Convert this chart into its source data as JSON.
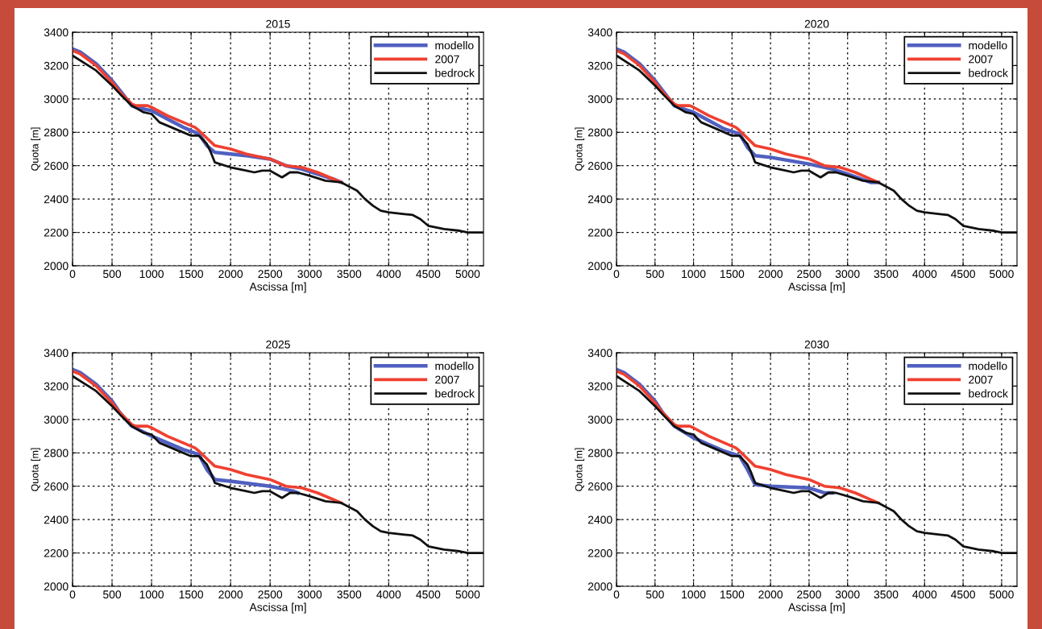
{
  "chart_data": [
    {
      "type": "line",
      "title": "2015",
      "xlabel": "Ascissa [m]",
      "ylabel": "Quota [m]",
      "xlim": [
        0,
        5200
      ],
      "xticks": [
        0,
        500,
        1000,
        1500,
        2000,
        2500,
        3000,
        3500,
        4000,
        4500,
        5000
      ],
      "ylim": [
        2000,
        3400
      ],
      "yticks": [
        2000,
        2200,
        2400,
        2600,
        2800,
        3000,
        3200,
        3400
      ],
      "grid": true,
      "legend": "top right",
      "line_style": "solid",
      "series": [
        {
          "name": "modello",
          "color": "#5060c0",
          "x": [
            0,
            100,
            300,
            500,
            600,
            750,
            800,
            1000,
            1200,
            1400,
            1600,
            1700,
            1800,
            2000,
            2200,
            2500,
            2700,
            2900,
            3100,
            3300,
            3400
          ],
          "values": [
            3300,
            3280,
            3210,
            3110,
            3050,
            2960,
            2950,
            2930,
            2880,
            2830,
            2790,
            2720,
            2680,
            2670,
            2660,
            2640,
            2600,
            2580,
            2550,
            2520,
            2500
          ]
        },
        {
          "name": "2007",
          "color": "#f04030",
          "x": [
            0,
            100,
            300,
            500,
            600,
            750,
            800,
            950,
            1000,
            1200,
            1400,
            1550,
            1600,
            1800,
            2000,
            2200,
            2500,
            2700,
            2900,
            3100,
            3300,
            3400
          ],
          "values": [
            3290,
            3270,
            3200,
            3100,
            3040,
            2970,
            2960,
            2960,
            2950,
            2900,
            2860,
            2830,
            2810,
            2720,
            2700,
            2670,
            2640,
            2600,
            2590,
            2560,
            2520,
            2500
          ]
        },
        {
          "name": "bedrock",
          "color": "#101010",
          "x": [
            0,
            200,
            300,
            500,
            600,
            750,
            900,
            1000,
            1100,
            1300,
            1500,
            1600,
            1700,
            1750,
            1800,
            2000,
            2200,
            2300,
            2400,
            2500,
            2650,
            2750,
            2850,
            3000,
            3200,
            3400,
            3600,
            3700,
            3800,
            3900,
            4000,
            4200,
            4300,
            4400,
            4500,
            4700,
            4900,
            5000,
            5200
          ],
          "values": [
            3260,
            3200,
            3170,
            3080,
            3030,
            2960,
            2920,
            2910,
            2860,
            2820,
            2780,
            2780,
            2730,
            2680,
            2620,
            2590,
            2570,
            2560,
            2570,
            2570,
            2530,
            2560,
            2560,
            2540,
            2510,
            2500,
            2450,
            2400,
            2360,
            2330,
            2320,
            2310,
            2305,
            2280,
            2240,
            2220,
            2210,
            2200,
            2200
          ]
        }
      ]
    },
    {
      "type": "line",
      "title": "2020",
      "xlabel": "Ascissa [m]",
      "ylabel": "Quota [m]",
      "xlim": [
        0,
        5200
      ],
      "xticks": [
        0,
        500,
        1000,
        1500,
        2000,
        2500,
        3000,
        3500,
        4000,
        4500,
        5000
      ],
      "ylim": [
        2000,
        3400
      ],
      "yticks": [
        2000,
        2200,
        2400,
        2600,
        2800,
        3000,
        3200,
        3400
      ],
      "grid": true,
      "legend": "top right",
      "line_style": "solid",
      "series": [
        {
          "name": "modello",
          "color": "#5060c0",
          "x": [
            0,
            100,
            300,
            500,
            600,
            750,
            800,
            1000,
            1200,
            1400,
            1600,
            1700,
            1800,
            2000,
            2500,
            2800,
            3000,
            3300,
            3400
          ],
          "values": [
            3300,
            3280,
            3210,
            3110,
            3050,
            2960,
            2950,
            2920,
            2870,
            2820,
            2790,
            2710,
            2660,
            2650,
            2610,
            2580,
            2550,
            2500,
            2500
          ]
        },
        {
          "name": "2007",
          "color": "#f04030",
          "x": [
            0,
            100,
            300,
            500,
            600,
            750,
            800,
            950,
            1000,
            1200,
            1400,
            1550,
            1600,
            1800,
            2000,
            2200,
            2500,
            2700,
            2900,
            3100,
            3300,
            3400
          ],
          "values": [
            3290,
            3270,
            3200,
            3100,
            3040,
            2970,
            2960,
            2960,
            2950,
            2900,
            2860,
            2830,
            2810,
            2720,
            2700,
            2670,
            2640,
            2600,
            2590,
            2560,
            2520,
            2500
          ]
        },
        {
          "name": "bedrock",
          "color": "#101010",
          "x": [
            0,
            200,
            300,
            500,
            600,
            750,
            900,
            1000,
            1100,
            1300,
            1500,
            1600,
            1700,
            1750,
            1800,
            2000,
            2200,
            2300,
            2400,
            2500,
            2650,
            2750,
            2850,
            3000,
            3200,
            3400,
            3600,
            3700,
            3800,
            3900,
            4000,
            4200,
            4300,
            4400,
            4500,
            4700,
            4900,
            5000,
            5200
          ],
          "values": [
            3260,
            3200,
            3170,
            3080,
            3030,
            2960,
            2920,
            2910,
            2860,
            2820,
            2780,
            2780,
            2730,
            2680,
            2620,
            2590,
            2570,
            2560,
            2570,
            2570,
            2530,
            2560,
            2560,
            2540,
            2510,
            2500,
            2450,
            2400,
            2360,
            2330,
            2320,
            2310,
            2305,
            2280,
            2240,
            2220,
            2210,
            2200,
            2200
          ]
        }
      ]
    },
    {
      "type": "line",
      "title": "2025",
      "xlabel": "Ascissa [m]",
      "ylabel": "Quota [m]",
      "xlim": [
        0,
        5200
      ],
      "xticks": [
        0,
        500,
        1000,
        1500,
        2000,
        2500,
        3000,
        3500,
        4000,
        4500,
        5000
      ],
      "ylim": [
        2000,
        3400
      ],
      "yticks": [
        2000,
        2200,
        2400,
        2600,
        2800,
        3000,
        3200,
        3400
      ],
      "grid": true,
      "legend": "top right",
      "line_style": "solid",
      "series": [
        {
          "name": "modello",
          "color": "#5060c0",
          "x": [
            0,
            100,
            300,
            500,
            600,
            750,
            1000,
            1200,
            1400,
            1600,
            1700,
            1800,
            2000,
            2500,
            2800,
            2850
          ],
          "values": [
            3300,
            3280,
            3210,
            3110,
            3040,
            2960,
            2900,
            2860,
            2820,
            2790,
            2700,
            2640,
            2630,
            2600,
            2570,
            2560
          ]
        },
        {
          "name": "2007",
          "color": "#f04030",
          "x": [
            0,
            100,
            300,
            500,
            600,
            750,
            800,
            950,
            1000,
            1200,
            1400,
            1550,
            1600,
            1800,
            2000,
            2200,
            2500,
            2700,
            2900,
            3100,
            3300,
            3400
          ],
          "values": [
            3290,
            3270,
            3200,
            3100,
            3040,
            2970,
            2960,
            2960,
            2950,
            2900,
            2860,
            2830,
            2810,
            2720,
            2700,
            2670,
            2640,
            2600,
            2590,
            2560,
            2520,
            2500
          ]
        },
        {
          "name": "bedrock",
          "color": "#101010",
          "x": [
            0,
            200,
            300,
            500,
            600,
            750,
            900,
            1000,
            1100,
            1300,
            1500,
            1600,
            1700,
            1750,
            1800,
            2000,
            2200,
            2300,
            2400,
            2500,
            2650,
            2750,
            2850,
            3000,
            3200,
            3400,
            3600,
            3700,
            3800,
            3900,
            4000,
            4200,
            4300,
            4400,
            4500,
            4700,
            4900,
            5000,
            5200
          ],
          "values": [
            3260,
            3200,
            3170,
            3080,
            3030,
            2960,
            2920,
            2910,
            2860,
            2820,
            2780,
            2780,
            2730,
            2680,
            2620,
            2590,
            2570,
            2560,
            2570,
            2570,
            2530,
            2560,
            2560,
            2540,
            2510,
            2500,
            2450,
            2400,
            2360,
            2330,
            2320,
            2310,
            2305,
            2280,
            2240,
            2220,
            2210,
            2200,
            2200
          ]
        }
      ]
    },
    {
      "type": "line",
      "title": "2030",
      "xlabel": "Ascissa [m]",
      "ylabel": "Quota [m]",
      "xlim": [
        0,
        5200
      ],
      "xticks": [
        0,
        500,
        1000,
        1500,
        2000,
        2500,
        3000,
        3500,
        4000,
        4500,
        5000
      ],
      "ylim": [
        2000,
        3400
      ],
      "yticks": [
        2000,
        2200,
        2400,
        2600,
        2800,
        3000,
        3200,
        3400
      ],
      "grid": true,
      "legend": "top right",
      "line_style": "solid",
      "series": [
        {
          "name": "modello",
          "color": "#5060c0",
          "x": [
            0,
            100,
            300,
            500,
            600,
            750,
            1000,
            1200,
            1400,
            1600,
            1700,
            1800,
            2000,
            2500,
            2700,
            2800
          ],
          "values": [
            3300,
            3280,
            3210,
            3110,
            3040,
            2960,
            2890,
            2850,
            2810,
            2780,
            2700,
            2610,
            2600,
            2590,
            2560,
            2560
          ]
        },
        {
          "name": "2007",
          "color": "#f04030",
          "x": [
            0,
            100,
            300,
            500,
            600,
            750,
            800,
            950,
            1000,
            1200,
            1400,
            1550,
            1600,
            1800,
            2000,
            2200,
            2500,
            2700,
            2900,
            3100,
            3300,
            3400
          ],
          "values": [
            3290,
            3270,
            3200,
            3100,
            3040,
            2970,
            2960,
            2960,
            2950,
            2900,
            2860,
            2830,
            2810,
            2720,
            2700,
            2670,
            2640,
            2600,
            2590,
            2560,
            2520,
            2500
          ]
        },
        {
          "name": "bedrock",
          "color": "#101010",
          "x": [
            0,
            200,
            300,
            500,
            600,
            750,
            900,
            1000,
            1100,
            1300,
            1500,
            1600,
            1700,
            1750,
            1800,
            2000,
            2200,
            2300,
            2400,
            2500,
            2650,
            2750,
            2850,
            3000,
            3200,
            3400,
            3600,
            3700,
            3800,
            3900,
            4000,
            4200,
            4300,
            4400,
            4500,
            4700,
            4900,
            5000,
            5200
          ],
          "values": [
            3260,
            3200,
            3170,
            3080,
            3030,
            2960,
            2920,
            2910,
            2860,
            2820,
            2780,
            2780,
            2730,
            2680,
            2620,
            2590,
            2570,
            2560,
            2570,
            2570,
            2530,
            2560,
            2560,
            2540,
            2510,
            2500,
            2450,
            2400,
            2360,
            2330,
            2320,
            2310,
            2305,
            2280,
            2240,
            2220,
            2210,
            2200,
            2200
          ]
        }
      ]
    }
  ]
}
